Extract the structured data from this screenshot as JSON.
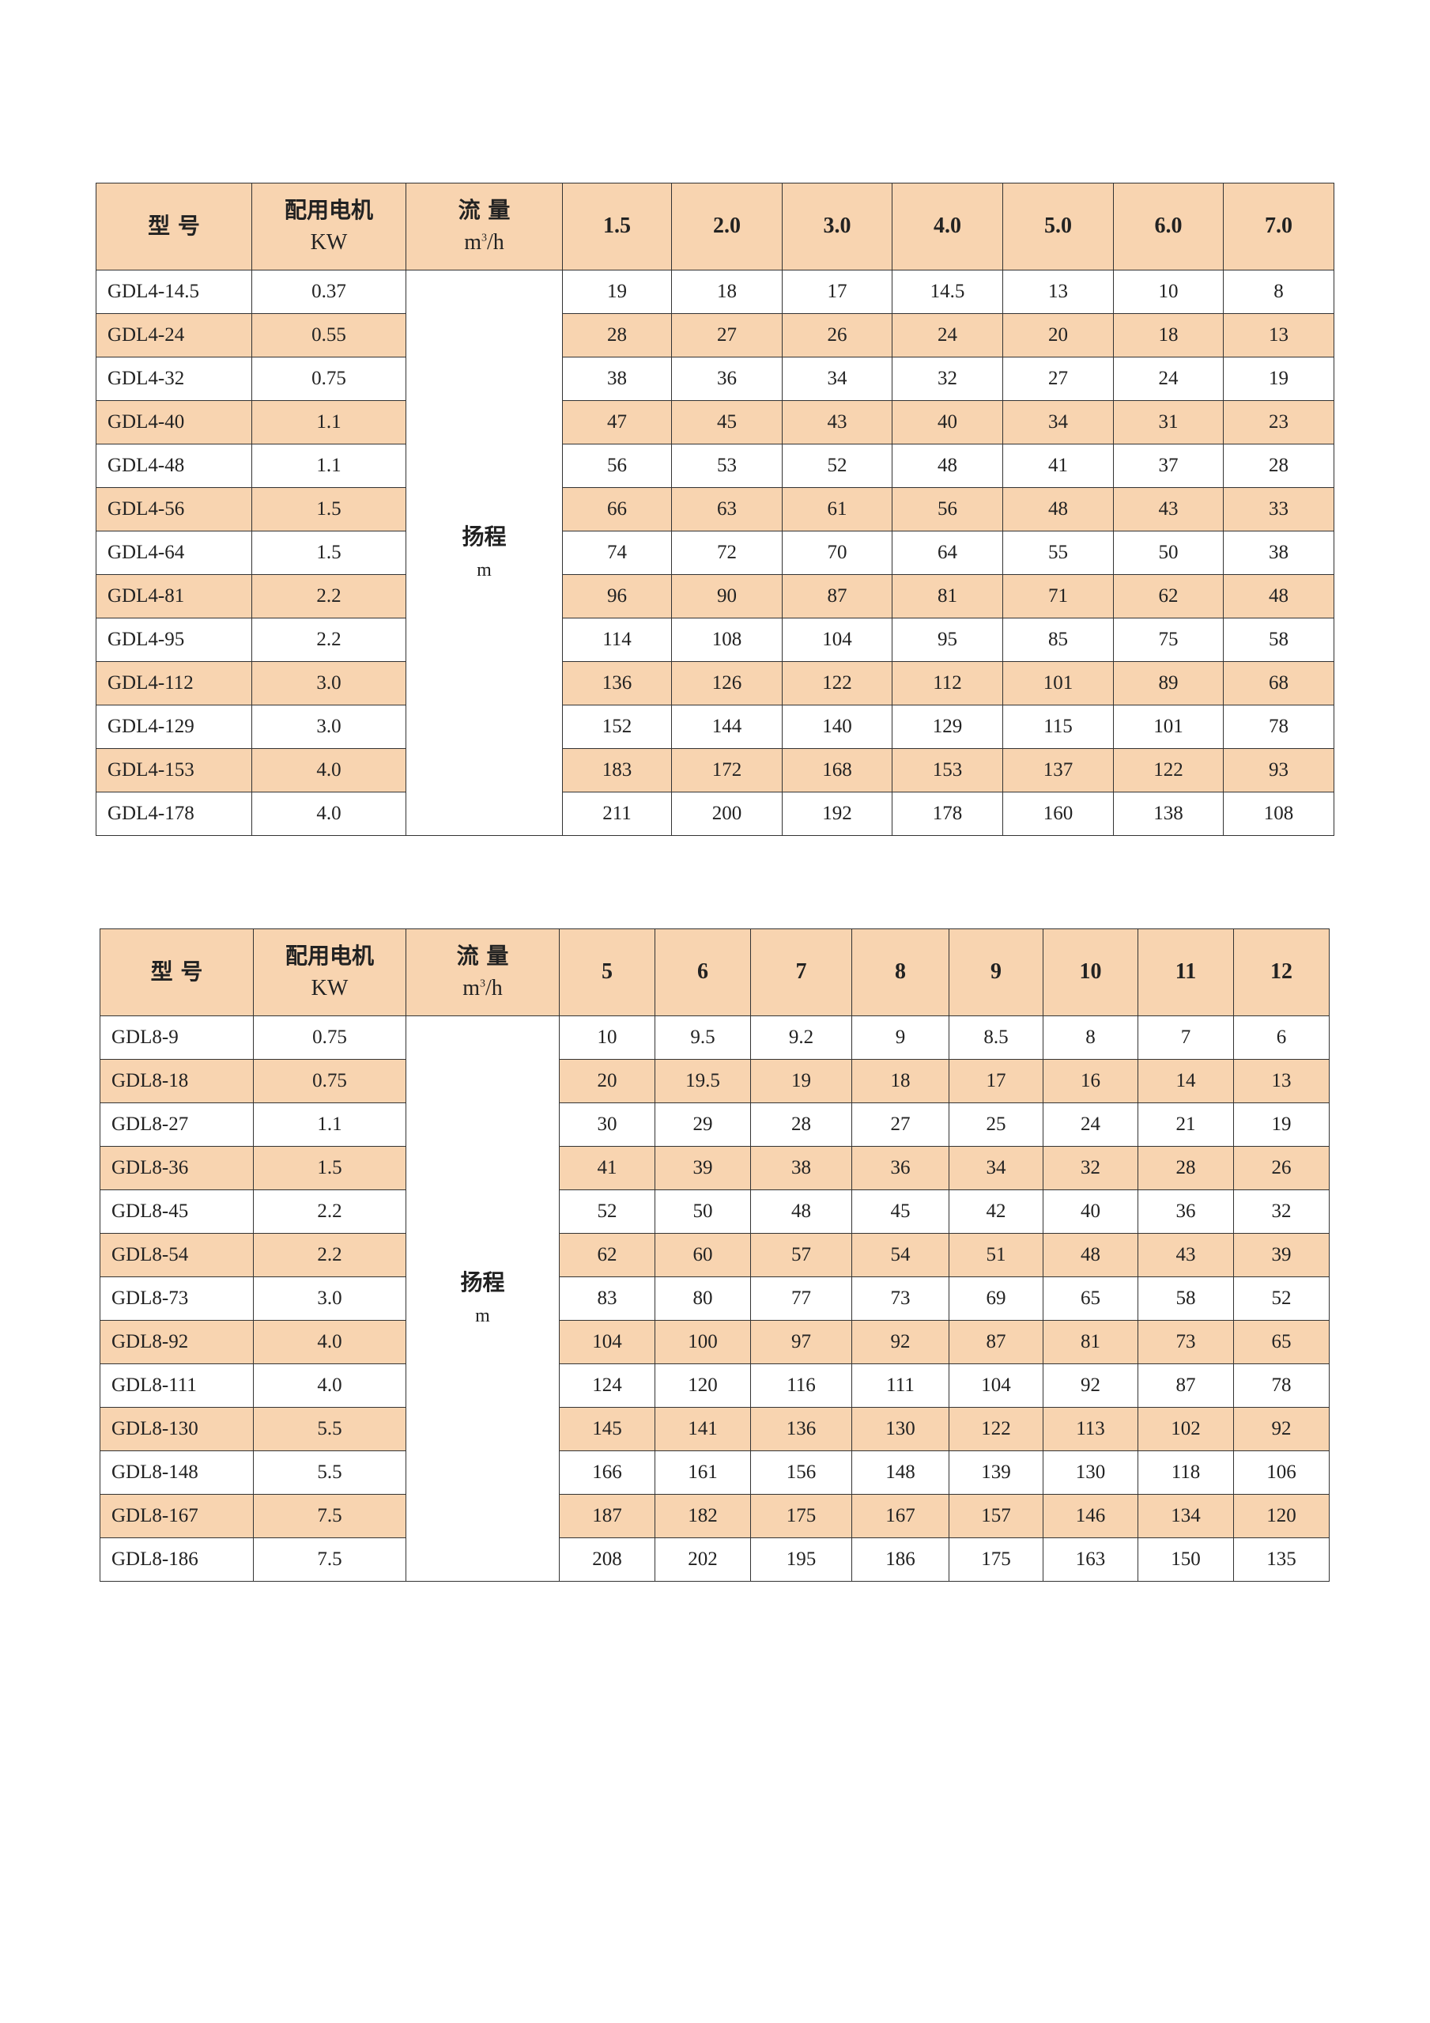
{
  "header_color": "#f8d4b0",
  "tables": [
    {
      "headers": {
        "model": "型  号",
        "motor": "配用电机",
        "motor_unit": "KW",
        "flow": "流 量",
        "flow_unit_base": "m",
        "flow_unit_sup": "3",
        "flow_unit_tail": "/h"
      },
      "head_label": "扬程",
      "head_unit": "m",
      "flows": [
        "1.5",
        "2.0",
        "3.0",
        "4.0",
        "5.0",
        "6.0",
        "7.0"
      ],
      "rows": [
        {
          "model": "GDL4-14.5",
          "kw": "0.37",
          "heads": [
            "19",
            "18",
            "17",
            "14.5",
            "13",
            "10",
            "8"
          ]
        },
        {
          "model": "GDL4-24",
          "kw": "0.55",
          "heads": [
            "28",
            "27",
            "26",
            "24",
            "20",
            "18",
            "13"
          ]
        },
        {
          "model": "GDL4-32",
          "kw": "0.75",
          "heads": [
            "38",
            "36",
            "34",
            "32",
            "27",
            "24",
            "19"
          ]
        },
        {
          "model": "GDL4-40",
          "kw": "1.1",
          "heads": [
            "47",
            "45",
            "43",
            "40",
            "34",
            "31",
            "23"
          ]
        },
        {
          "model": "GDL4-48",
          "kw": "1.1",
          "heads": [
            "56",
            "53",
            "52",
            "48",
            "41",
            "37",
            "28"
          ]
        },
        {
          "model": "GDL4-56",
          "kw": "1.5",
          "heads": [
            "66",
            "63",
            "61",
            "56",
            "48",
            "43",
            "33"
          ]
        },
        {
          "model": "GDL4-64",
          "kw": "1.5",
          "heads": [
            "74",
            "72",
            "70",
            "64",
            "55",
            "50",
            "38"
          ]
        },
        {
          "model": "GDL4-81",
          "kw": "2.2",
          "heads": [
            "96",
            "90",
            "87",
            "81",
            "71",
            "62",
            "48"
          ]
        },
        {
          "model": "GDL4-95",
          "kw": "2.2",
          "heads": [
            "114",
            "108",
            "104",
            "95",
            "85",
            "75",
            "58"
          ]
        },
        {
          "model": "GDL4-112",
          "kw": "3.0",
          "heads": [
            "136",
            "126",
            "122",
            "112",
            "101",
            "89",
            "68"
          ]
        },
        {
          "model": "GDL4-129",
          "kw": "3.0",
          "heads": [
            "152",
            "144",
            "140",
            "129",
            "115",
            "101",
            "78"
          ]
        },
        {
          "model": "GDL4-153",
          "kw": "4.0",
          "heads": [
            "183",
            "172",
            "168",
            "153",
            "137",
            "122",
            "93"
          ]
        },
        {
          "model": "GDL4-178",
          "kw": "4.0",
          "heads": [
            "211",
            "200",
            "192",
            "178",
            "160",
            "138",
            "108"
          ]
        }
      ]
    },
    {
      "headers": {
        "model": "型  号",
        "motor": "配用电机",
        "motor_unit": "KW",
        "flow": "流 量",
        "flow_unit_base": "m",
        "flow_unit_sup": "3",
        "flow_unit_tail": "/h"
      },
      "head_label": "扬程",
      "head_unit": "m",
      "flows": [
        "5",
        "6",
        "7",
        "8",
        "9",
        "10",
        "11",
        "12"
      ],
      "rows": [
        {
          "model": "GDL8-9",
          "kw": "0.75",
          "heads": [
            "10",
            "9.5",
            "9.2",
            "9",
            "8.5",
            "8",
            "7",
            "6"
          ]
        },
        {
          "model": "GDL8-18",
          "kw": "0.75",
          "heads": [
            "20",
            "19.5",
            "19",
            "18",
            "17",
            "16",
            "14",
            "13"
          ]
        },
        {
          "model": "GDL8-27",
          "kw": "1.1",
          "heads": [
            "30",
            "29",
            "28",
            "27",
            "25",
            "24",
            "21",
            "19"
          ]
        },
        {
          "model": "GDL8-36",
          "kw": "1.5",
          "heads": [
            "41",
            "39",
            "38",
            "36",
            "34",
            "32",
            "28",
            "26"
          ]
        },
        {
          "model": "GDL8-45",
          "kw": "2.2",
          "heads": [
            "52",
            "50",
            "48",
            "45",
            "42",
            "40",
            "36",
            "32"
          ]
        },
        {
          "model": "GDL8-54",
          "kw": "2.2",
          "heads": [
            "62",
            "60",
            "57",
            "54",
            "51",
            "48",
            "43",
            "39"
          ]
        },
        {
          "model": "GDL8-73",
          "kw": "3.0",
          "heads": [
            "83",
            "80",
            "77",
            "73",
            "69",
            "65",
            "58",
            "52"
          ]
        },
        {
          "model": "GDL8-92",
          "kw": "4.0",
          "heads": [
            "104",
            "100",
            "97",
            "92",
            "87",
            "81",
            "73",
            "65"
          ]
        },
        {
          "model": "GDL8-111",
          "kw": "4.0",
          "heads": [
            "124",
            "120",
            "116",
            "111",
            "104",
            "92",
            "87",
            "78"
          ]
        },
        {
          "model": "GDL8-130",
          "kw": "5.5",
          "heads": [
            "145",
            "141",
            "136",
            "130",
            "122",
            "113",
            "102",
            "92"
          ]
        },
        {
          "model": "GDL8-148",
          "kw": "5.5",
          "heads": [
            "166",
            "161",
            "156",
            "148",
            "139",
            "130",
            "118",
            "106"
          ]
        },
        {
          "model": "GDL8-167",
          "kw": "7.5",
          "heads": [
            "187",
            "182",
            "175",
            "167",
            "157",
            "146",
            "134",
            "120"
          ]
        },
        {
          "model": "GDL8-186",
          "kw": "7.5",
          "heads": [
            "208",
            "202",
            "195",
            "186",
            "175",
            "163",
            "150",
            "135"
          ]
        }
      ]
    }
  ]
}
